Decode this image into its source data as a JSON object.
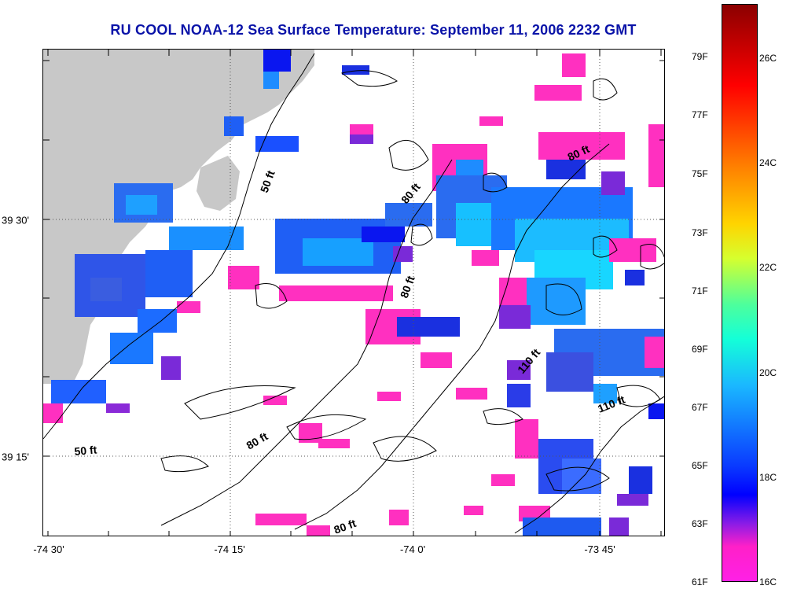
{
  "title": "RU COOL  NOAA-12  Sea Surface Temperature:  September 11, 2006 2232 GMT",
  "x_tick_labels": [
    "-74 30'",
    "-74 15'",
    "-74 0'",
    "-73 45'"
  ],
  "y_tick_labels": [
    "39 30'",
    "39 15'"
  ],
  "contour_labels": [
    "50 ft",
    "80 ft",
    "80 ft",
    "80 ft",
    "110 ft",
    "110 ft",
    "50 ft",
    "80 ft",
    "80 ft"
  ],
  "colorbar": {
    "fahrenheit_labels": [
      "79F",
      "77F",
      "75F",
      "73F",
      "71F",
      "69F",
      "67F",
      "65F",
      "63F",
      "61F"
    ],
    "celsius_labels": [
      "26C",
      "24C",
      "22C",
      "20C",
      "18C",
      "16C"
    ]
  },
  "colors": {
    "title": "#0a13a8",
    "land": "#c8c8c8",
    "grid": "#555555"
  }
}
